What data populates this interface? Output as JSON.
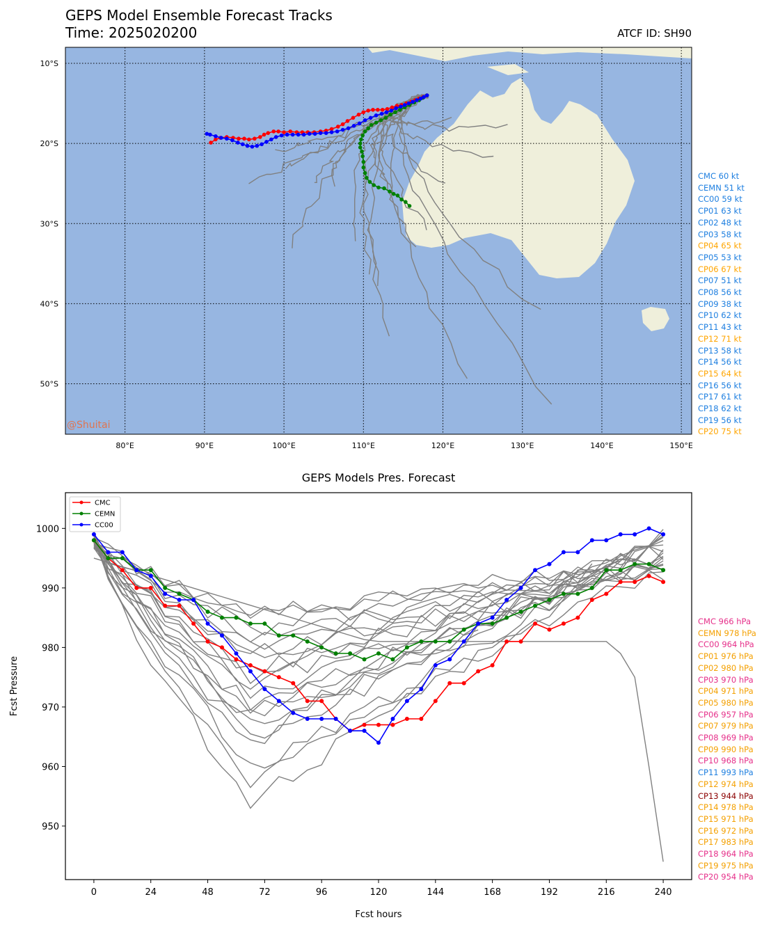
{
  "header": {
    "title": "GEPS Model Ensemble Forecast Tracks",
    "time_label": "Time: 2025020200",
    "atcf_label": "ATCF ID: SH90",
    "watermark": "@Shuitai"
  },
  "colors": {
    "ocean": "#97b6e1",
    "land": "#efefdb",
    "members": "#808080",
    "cmc": "#ff0000",
    "cemn": "#008000",
    "cc00": "#0000ff",
    "intensity_blue": "#1e7fe0",
    "intensity_orange": "#ffa500",
    "pressure_pink": "#e6308a",
    "pressure_orange": "#f4a000",
    "pressure_blue": "#1e7fe0",
    "pressure_dark": "#8b0000"
  },
  "chart_data": [
    {
      "type": "line",
      "subtype": "track-map",
      "xlim": [
        72.5,
        151.3
      ],
      "ylim": [
        -56.3,
        -8.0
      ],
      "lon_ticks": [
        80,
        90,
        100,
        110,
        120,
        130,
        140,
        150
      ],
      "lon_tick_labels": [
        "80°E",
        "90°E",
        "100°E",
        "110°E",
        "120°E",
        "130°E",
        "140°E",
        "150°E"
      ],
      "lat_ticks": [
        -10,
        -20,
        -30,
        -40,
        -50
      ],
      "lat_tick_labels": [
        "10°S",
        "20°S",
        "30°S",
        "40°S",
        "50°S"
      ],
      "grid": true,
      "series": [
        {
          "name": "CMC",
          "points": [
            [
              118.0,
              -14.0
            ],
            [
              117.5,
              -14.2
            ],
            [
              117.0,
              -14.4
            ],
            [
              116.5,
              -14.6
            ],
            [
              116.0,
              -14.8
            ],
            [
              115.4,
              -15.0
            ],
            [
              114.8,
              -15.2
            ],
            [
              114.2,
              -15.3
            ],
            [
              113.6,
              -15.5
            ],
            [
              113.0,
              -15.7
            ],
            [
              112.4,
              -15.8
            ],
            [
              111.8,
              -15.8
            ],
            [
              111.2,
              -15.8
            ],
            [
              110.6,
              -15.9
            ],
            [
              110.0,
              -16.1
            ],
            [
              109.4,
              -16.4
            ],
            [
              108.7,
              -16.8
            ],
            [
              108.0,
              -17.2
            ],
            [
              107.4,
              -17.6
            ],
            [
              106.8,
              -17.9
            ],
            [
              106.0,
              -18.2
            ],
            [
              105.3,
              -18.4
            ],
            [
              104.6,
              -18.5
            ],
            [
              103.8,
              -18.6
            ],
            [
              103.0,
              -18.6
            ],
            [
              102.3,
              -18.6
            ],
            [
              101.6,
              -18.6
            ],
            [
              100.8,
              -18.5
            ],
            [
              100.0,
              -18.6
            ],
            [
              99.3,
              -18.5
            ],
            [
              98.7,
              -18.5
            ],
            [
              98.0,
              -18.7
            ],
            [
              97.5,
              -18.9
            ],
            [
              97.0,
              -19.2
            ],
            [
              96.3,
              -19.4
            ],
            [
              95.6,
              -19.5
            ],
            [
              95.0,
              -19.4
            ],
            [
              94.3,
              -19.4
            ],
            [
              93.6,
              -19.3
            ],
            [
              92.8,
              -19.2
            ],
            [
              92.0,
              -19.3
            ],
            [
              91.4,
              -19.5
            ],
            [
              90.8,
              -19.9
            ]
          ]
        },
        {
          "name": "CEMN",
          "points": [
            [
              118.0,
              -14.0
            ],
            [
              117.5,
              -14.3
            ],
            [
              117.0,
              -14.6
            ],
            [
              116.4,
              -14.9
            ],
            [
              115.8,
              -15.2
            ],
            [
              115.2,
              -15.5
            ],
            [
              114.6,
              -15.8
            ],
            [
              114.0,
              -16.1
            ],
            [
              113.4,
              -16.4
            ],
            [
              112.8,
              -16.8
            ],
            [
              112.2,
              -17.1
            ],
            [
              111.6,
              -17.4
            ],
            [
              111.0,
              -17.7
            ],
            [
              110.6,
              -18.1
            ],
            [
              110.2,
              -18.5
            ],
            [
              109.9,
              -19.0
            ],
            [
              109.7,
              -19.5
            ],
            [
              109.6,
              -20.0
            ],
            [
              109.6,
              -20.5
            ],
            [
              109.8,
              -21.0
            ],
            [
              109.9,
              -21.6
            ],
            [
              110.0,
              -22.3
            ],
            [
              110.0,
              -23.0
            ],
            [
              110.2,
              -23.7
            ],
            [
              110.4,
              -24.3
            ],
            [
              110.8,
              -24.8
            ],
            [
              111.3,
              -25.2
            ],
            [
              111.9,
              -25.5
            ],
            [
              112.6,
              -25.6
            ],
            [
              113.3,
              -26.0
            ],
            [
              113.8,
              -26.3
            ],
            [
              114.3,
              -26.5
            ],
            [
              114.8,
              -27.0
            ],
            [
              115.3,
              -27.3
            ],
            [
              115.8,
              -27.8
            ]
          ]
        },
        {
          "name": "CC00",
          "points": [
            [
              118.0,
              -14.0
            ],
            [
              117.6,
              -14.2
            ],
            [
              117.2,
              -14.4
            ],
            [
              116.7,
              -14.6
            ],
            [
              116.2,
              -14.8
            ],
            [
              115.7,
              -15.0
            ],
            [
              115.2,
              -15.2
            ],
            [
              114.7,
              -15.4
            ],
            [
              114.1,
              -15.6
            ],
            [
              113.5,
              -15.9
            ],
            [
              112.9,
              -16.1
            ],
            [
              112.3,
              -16.3
            ],
            [
              111.6,
              -16.5
            ],
            [
              110.9,
              -16.8
            ],
            [
              110.2,
              -17.1
            ],
            [
              109.5,
              -17.5
            ],
            [
              108.8,
              -17.8
            ],
            [
              108.1,
              -18.1
            ],
            [
              107.4,
              -18.3
            ],
            [
              106.7,
              -18.5
            ],
            [
              106.0,
              -18.6
            ],
            [
              105.3,
              -18.7
            ],
            [
              104.6,
              -18.7
            ],
            [
              103.9,
              -18.8
            ],
            [
              103.2,
              -18.8
            ],
            [
              102.5,
              -18.9
            ],
            [
              101.8,
              -18.9
            ],
            [
              101.1,
              -18.9
            ],
            [
              100.4,
              -18.9
            ],
            [
              99.7,
              -19.0
            ],
            [
              99.0,
              -19.2
            ],
            [
              98.4,
              -19.5
            ],
            [
              97.8,
              -19.8
            ],
            [
              97.2,
              -20.1
            ],
            [
              96.6,
              -20.3
            ],
            [
              96.0,
              -20.4
            ],
            [
              95.4,
              -20.3
            ],
            [
              94.8,
              -20.1
            ],
            [
              94.2,
              -19.9
            ],
            [
              93.5,
              -19.6
            ],
            [
              92.8,
              -19.4
            ],
            [
              92.1,
              -19.3
            ],
            [
              91.4,
              -19.1
            ],
            [
              90.7,
              -18.9
            ],
            [
              90.3,
              -18.8
            ]
          ]
        }
      ]
    },
    {
      "type": "line",
      "title": "GEPS Models Pres. Forecast",
      "xlabel": "Fcst hours",
      "ylabel": "Fcst Pressure",
      "xlim": [
        -12,
        252
      ],
      "ylim": [
        941,
        1006
      ],
      "xticks": [
        0,
        24,
        48,
        72,
        96,
        120,
        144,
        168,
        192,
        216,
        240
      ],
      "yticks": [
        950,
        960,
        970,
        980,
        990,
        1000
      ],
      "legend_position": "upper left",
      "series": [
        {
          "name": "CMC",
          "x": [
            0,
            6,
            12,
            18,
            24,
            30,
            36,
            42,
            48,
            54,
            60,
            66,
            72,
            78,
            84,
            90,
            96,
            102,
            108,
            114,
            120,
            126,
            132,
            138,
            144,
            150,
            156,
            162,
            168,
            174,
            180,
            186,
            192,
            198,
            204,
            210,
            216,
            222,
            228,
            234,
            240
          ],
          "values": [
            998,
            995,
            993,
            990,
            990,
            987,
            987,
            984,
            981,
            980,
            978,
            977,
            976,
            975,
            974,
            971,
            971,
            968,
            966,
            967,
            967,
            967,
            968,
            968,
            971,
            974,
            974,
            976,
            977,
            981,
            981,
            984,
            983,
            984,
            985,
            988,
            989,
            991,
            991,
            992,
            991
          ]
        },
        {
          "name": "CEMN",
          "x": [
            0,
            6,
            12,
            18,
            24,
            30,
            36,
            42,
            48,
            54,
            60,
            66,
            72,
            78,
            84,
            90,
            96,
            102,
            108,
            114,
            120,
            126,
            132,
            138,
            144,
            150,
            156,
            162,
            168,
            174,
            180,
            186,
            192,
            198,
            204,
            210,
            216,
            222,
            228,
            234,
            240
          ],
          "values": [
            998,
            995,
            995,
            993,
            993,
            990,
            989,
            988,
            986,
            985,
            985,
            984,
            984,
            982,
            982,
            981,
            980,
            979,
            979,
            978,
            979,
            978,
            980,
            981,
            981,
            981,
            983,
            984,
            984,
            985,
            986,
            987,
            988,
            989,
            989,
            990,
            993,
            993,
            994,
            994,
            993
          ]
        },
        {
          "name": "CC00",
          "x": [
            0,
            6,
            12,
            18,
            24,
            30,
            36,
            42,
            48,
            54,
            60,
            66,
            72,
            78,
            84,
            90,
            96,
            102,
            108,
            114,
            120,
            126,
            132,
            138,
            144,
            150,
            156,
            162,
            168,
            174,
            180,
            186,
            192,
            198,
            204,
            210,
            216,
            222,
            228,
            234,
            240
          ],
          "values": [
            999,
            996,
            996,
            993,
            992,
            989,
            988,
            988,
            984,
            982,
            979,
            976,
            973,
            971,
            969,
            968,
            968,
            968,
            966,
            966,
            964,
            968,
            971,
            973,
            977,
            978,
            981,
            984,
            985,
            988,
            990,
            993,
            994,
            996,
            996,
            998,
            998,
            999,
            999,
            1000,
            999
          ]
        }
      ]
    }
  ],
  "intensity_labels": [
    {
      "text": "CMC 60 kt",
      "color": "#1e7fe0"
    },
    {
      "text": "CEMN 51 kt",
      "color": "#1e7fe0"
    },
    {
      "text": "CC00 59 kt",
      "color": "#1e7fe0"
    },
    {
      "text": "CP01 63 kt",
      "color": "#1e7fe0"
    },
    {
      "text": "CP02 48 kt",
      "color": "#1e7fe0"
    },
    {
      "text": "CP03 58 kt",
      "color": "#1e7fe0"
    },
    {
      "text": "CP04 65 kt",
      "color": "#ffa500"
    },
    {
      "text": "CP05 53 kt",
      "color": "#1e7fe0"
    },
    {
      "text": "CP06 67 kt",
      "color": "#ffa500"
    },
    {
      "text": "CP07 51 kt",
      "color": "#1e7fe0"
    },
    {
      "text": "CP08 56 kt",
      "color": "#1e7fe0"
    },
    {
      "text": "CP09 38 kt",
      "color": "#1e7fe0"
    },
    {
      "text": "CP10 62 kt",
      "color": "#1e7fe0"
    },
    {
      "text": "CP11 43 kt",
      "color": "#1e7fe0"
    },
    {
      "text": "CP12 71 kt",
      "color": "#ffa500"
    },
    {
      "text": "CP13 58 kt",
      "color": "#1e7fe0"
    },
    {
      "text": "CP14 56 kt",
      "color": "#1e7fe0"
    },
    {
      "text": "CP15 64 kt",
      "color": "#ffa500"
    },
    {
      "text": "CP16 56 kt",
      "color": "#1e7fe0"
    },
    {
      "text": "CP17 61 kt",
      "color": "#1e7fe0"
    },
    {
      "text": "CP18 62 kt",
      "color": "#1e7fe0"
    },
    {
      "text": "CP19 56 kt",
      "color": "#1e7fe0"
    },
    {
      "text": "CP20 75 kt",
      "color": "#ffa500"
    }
  ],
  "pressure_labels": [
    {
      "text": "CMC 966 hPa",
      "color": "#e6308a"
    },
    {
      "text": "CEMN 978 hPa",
      "color": "#f4a000"
    },
    {
      "text": "CC00 964 hPa",
      "color": "#e6308a"
    },
    {
      "text": "CP01 976 hPa",
      "color": "#f4a000"
    },
    {
      "text": "CP02 980 hPa",
      "color": "#f4a000"
    },
    {
      "text": "CP03 970 hPa",
      "color": "#e6308a"
    },
    {
      "text": "CP04 971 hPa",
      "color": "#f4a000"
    },
    {
      "text": "CP05 980 hPa",
      "color": "#f4a000"
    },
    {
      "text": "CP06 957 hPa",
      "color": "#e6308a"
    },
    {
      "text": "CP07 979 hPa",
      "color": "#f4a000"
    },
    {
      "text": "CP08 969 hPa",
      "color": "#e6308a"
    },
    {
      "text": "CP09 990 hPa",
      "color": "#f4a000"
    },
    {
      "text": "CP10 968 hPa",
      "color": "#e6308a"
    },
    {
      "text": "CP11 993 hPa",
      "color": "#1e7fe0"
    },
    {
      "text": "CP12 974 hPa",
      "color": "#f4a000"
    },
    {
      "text": "CP13 944 hPa",
      "color": "#8b0000"
    },
    {
      "text": "CP14 978 hPa",
      "color": "#f4a000"
    },
    {
      "text": "CP15 971 hPa",
      "color": "#f4a000"
    },
    {
      "text": "CP16 972 hPa",
      "color": "#f4a000"
    },
    {
      "text": "CP17 983 hPa",
      "color": "#f4a000"
    },
    {
      "text": "CP18 964 hPa",
      "color": "#e6308a"
    },
    {
      "text": "CP19 975 hPa",
      "color": "#f4a000"
    },
    {
      "text": "CP20 954 hPa",
      "color": "#e6308a"
    }
  ]
}
